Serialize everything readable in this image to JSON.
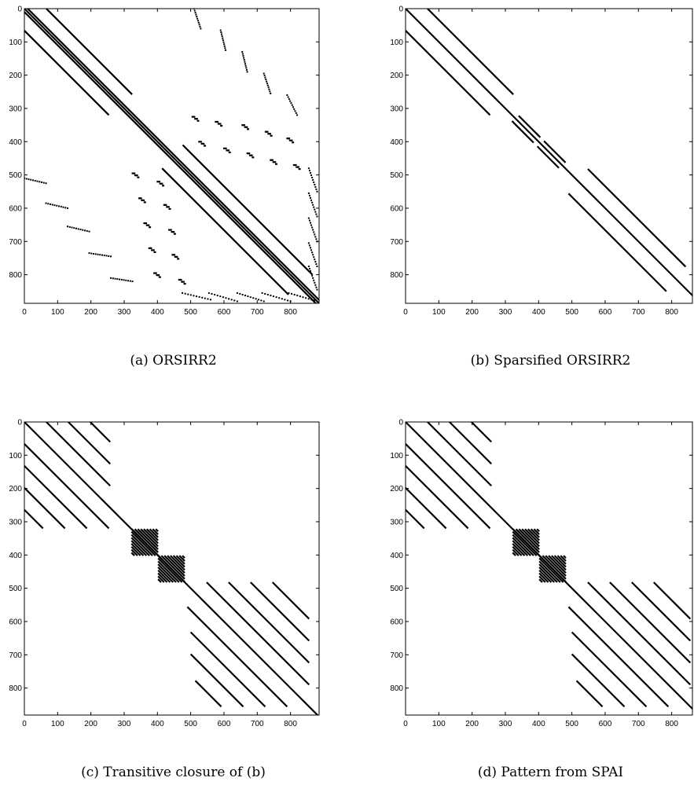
{
  "chart_data": [
    {
      "type": "scatter",
      "subtype": "sparsity-pattern",
      "caption": "(a) ORSIRR2",
      "xlim": [
        0,
        886
      ],
      "ylim": [
        0,
        886
      ],
      "y_inverted": true,
      "x_ticks": [
        0,
        100,
        200,
        300,
        400,
        500,
        600,
        700,
        800
      ],
      "y_ticks": [
        0,
        100,
        200,
        300,
        400,
        500,
        600,
        700,
        800
      ],
      "diagonals": [
        {
          "offset": 0,
          "from": 0,
          "to": 886,
          "weight": "heavy"
        },
        {
          "offset": 10,
          "from": 0,
          "to": 876,
          "weight": "heavy"
        },
        {
          "offset": -10,
          "from": 10,
          "to": 886,
          "weight": "heavy"
        },
        {
          "offset": 66,
          "from": 0,
          "to": 258
        },
        {
          "offset": -66,
          "from": 66,
          "to": 320
        },
        {
          "offset": 66,
          "from": 410,
          "to": 800
        },
        {
          "offset": -66,
          "from": 480,
          "to": 860
        }
      ],
      "scatter_runs": [
        {
          "x": [
            510,
            530
          ],
          "y": [
            0,
            60
          ]
        },
        {
          "x": [
            590,
            605
          ],
          "y": [
            65,
            125
          ]
        },
        {
          "x": [
            655,
            670
          ],
          "y": [
            130,
            190
          ]
        },
        {
          "x": [
            720,
            740
          ],
          "y": [
            195,
            255
          ]
        },
        {
          "x": [
            790,
            820
          ],
          "y": [
            260,
            320
          ]
        },
        {
          "x": [
            0,
            65
          ],
          "y": [
            510,
            525
          ]
        },
        {
          "x": [
            65,
            130
          ],
          "y": [
            585,
            600
          ]
        },
        {
          "x": [
            130,
            195
          ],
          "y": [
            655,
            670
          ]
        },
        {
          "x": [
            195,
            260
          ],
          "y": [
            735,
            745
          ]
        },
        {
          "x": [
            260,
            325
          ],
          "y": [
            810,
            820
          ]
        },
        {
          "x": [
            475,
            560
          ],
          "y": [
            855,
            875
          ]
        },
        {
          "x": [
            555,
            640
          ],
          "y": [
            855,
            880
          ]
        },
        {
          "x": [
            640,
            720
          ],
          "y": [
            855,
            880
          ]
        },
        {
          "x": [
            715,
            800
          ],
          "y": [
            855,
            880
          ]
        },
        {
          "x": [
            795,
            880
          ],
          "y": [
            855,
            880
          ]
        },
        {
          "x": [
            855,
            880
          ],
          "y": [
            480,
            550
          ]
        },
        {
          "x": [
            855,
            880
          ],
          "y": [
            555,
            625
          ]
        },
        {
          "x": [
            855,
            880
          ],
          "y": [
            630,
            700
          ]
        },
        {
          "x": [
            855,
            880
          ],
          "y": [
            705,
            775
          ]
        },
        {
          "x": [
            855,
            880
          ],
          "y": [
            775,
            845
          ]
        }
      ],
      "block_clusters": [
        {
          "x": 505,
          "y": 325
        },
        {
          "x": 575,
          "y": 340
        },
        {
          "x": 655,
          "y": 350
        },
        {
          "x": 725,
          "y": 370
        },
        {
          "x": 790,
          "y": 390
        },
        {
          "x": 525,
          "y": 400
        },
        {
          "x": 600,
          "y": 420
        },
        {
          "x": 670,
          "y": 435
        },
        {
          "x": 740,
          "y": 455
        },
        {
          "x": 810,
          "y": 470
        },
        {
          "x": 325,
          "y": 495
        },
        {
          "x": 400,
          "y": 520
        },
        {
          "x": 345,
          "y": 570
        },
        {
          "x": 420,
          "y": 590
        },
        {
          "x": 360,
          "y": 645
        },
        {
          "x": 435,
          "y": 665
        },
        {
          "x": 375,
          "y": 720
        },
        {
          "x": 445,
          "y": 740
        },
        {
          "x": 390,
          "y": 795
        },
        {
          "x": 465,
          "y": 815
        }
      ]
    },
    {
      "type": "scatter",
      "subtype": "sparsity-pattern",
      "caption": "(b) Sparsified ORSIRR2",
      "xlim": [
        0,
        886
      ],
      "ylim": [
        0,
        886
      ],
      "y_inverted": true,
      "x_ticks": [
        0,
        100,
        200,
        300,
        400,
        500,
        600,
        700,
        800
      ],
      "y_ticks": [
        0,
        100,
        200,
        300,
        400,
        500,
        600,
        700,
        800
      ],
      "diagonals": [
        {
          "offset": 0,
          "from": 0,
          "to": 886
        },
        {
          "offset": 66,
          "from": 0,
          "to": 258
        },
        {
          "offset": -66,
          "from": 66,
          "to": 320
        },
        {
          "offset": 18,
          "from": 322,
          "to": 387
        },
        {
          "offset": -18,
          "from": 338,
          "to": 403
        },
        {
          "offset": 18,
          "from": 398,
          "to": 463
        },
        {
          "offset": -18,
          "from": 414,
          "to": 479
        },
        {
          "offset": 66,
          "from": 482,
          "to": 776
        },
        {
          "offset": -66,
          "from": 556,
          "to": 850
        }
      ]
    },
    {
      "type": "scatter",
      "subtype": "sparsity-pattern",
      "caption": "(c) Transitive closure of (b)",
      "xlim": [
        0,
        886
      ],
      "ylim": [
        0,
        886
      ],
      "y_inverted": true,
      "x_ticks": [
        0,
        100,
        200,
        300,
        400,
        500,
        600,
        700,
        800
      ],
      "y_ticks": [
        0,
        100,
        200,
        300,
        400,
        500,
        600,
        700,
        800
      ],
      "diagonals": [
        {
          "offset": 0,
          "from": 0,
          "to": 886
        },
        {
          "offset": 66,
          "from": 0,
          "to": 192
        },
        {
          "offset": 132,
          "from": 0,
          "to": 126
        },
        {
          "offset": 198,
          "from": 0,
          "to": 60
        },
        {
          "offset": 264,
          "from": 0,
          "to": 0
        },
        {
          "offset": -66,
          "from": 66,
          "to": 320
        },
        {
          "offset": -132,
          "from": 132,
          "to": 320
        },
        {
          "offset": -198,
          "from": 198,
          "to": 320
        },
        {
          "offset": -264,
          "from": 264,
          "to": 320
        },
        {
          "offset": 66,
          "from": 482,
          "to": 790
        },
        {
          "offset": 132,
          "from": 482,
          "to": 724
        },
        {
          "offset": 198,
          "from": 482,
          "to": 658
        },
        {
          "offset": 264,
          "from": 482,
          "to": 592
        },
        {
          "offset": -66,
          "from": 556,
          "to": 856
        },
        {
          "offset": -132,
          "from": 632,
          "to": 856
        },
        {
          "offset": -198,
          "from": 698,
          "to": 856
        },
        {
          "offset": -264,
          "from": 778,
          "to": 856
        }
      ],
      "hatched_blocks": [
        {
          "x0": 322,
          "x1": 402,
          "y0": 322,
          "y1": 402
        },
        {
          "x0": 402,
          "x1": 482,
          "y0": 402,
          "y1": 482
        }
      ]
    },
    {
      "type": "scatter",
      "subtype": "sparsity-pattern",
      "caption": "(d) Pattern from SPAI",
      "xlim": [
        0,
        886
      ],
      "ylim": [
        0,
        886
      ],
      "y_inverted": true,
      "x_ticks": [
        0,
        100,
        200,
        300,
        400,
        500,
        600,
        700,
        800
      ],
      "y_ticks": [
        0,
        100,
        200,
        300,
        400,
        500,
        600,
        700,
        800
      ],
      "diagonals": [
        {
          "offset": 0,
          "from": 0,
          "to": 886
        },
        {
          "offset": 66,
          "from": 0,
          "to": 192
        },
        {
          "offset": 132,
          "from": 0,
          "to": 126
        },
        {
          "offset": 198,
          "from": 0,
          "to": 60
        },
        {
          "offset": 264,
          "from": 0,
          "to": 0
        },
        {
          "offset": -66,
          "from": 66,
          "to": 320
        },
        {
          "offset": -132,
          "from": 132,
          "to": 320
        },
        {
          "offset": -198,
          "from": 198,
          "to": 320
        },
        {
          "offset": -264,
          "from": 264,
          "to": 320
        },
        {
          "offset": 66,
          "from": 482,
          "to": 790
        },
        {
          "offset": 132,
          "from": 482,
          "to": 724
        },
        {
          "offset": 198,
          "from": 482,
          "to": 658
        },
        {
          "offset": 264,
          "from": 482,
          "to": 592
        },
        {
          "offset": -66,
          "from": 556,
          "to": 856
        },
        {
          "offset": -132,
          "from": 632,
          "to": 856
        },
        {
          "offset": -198,
          "from": 698,
          "to": 856
        },
        {
          "offset": -264,
          "from": 778,
          "to": 856
        }
      ],
      "hatched_blocks": [
        {
          "x0": 322,
          "x1": 402,
          "y0": 322,
          "y1": 402
        },
        {
          "x0": 402,
          "x1": 482,
          "y0": 402,
          "y1": 482
        }
      ],
      "edge_points": [
        {
          "x": 880,
          "y": 570
        },
        {
          "x": 880,
          "y": 720
        },
        {
          "x": 882,
          "y": 735
        },
        {
          "x": 878,
          "y": 858
        },
        {
          "x": 882,
          "y": 862
        }
      ]
    }
  ]
}
